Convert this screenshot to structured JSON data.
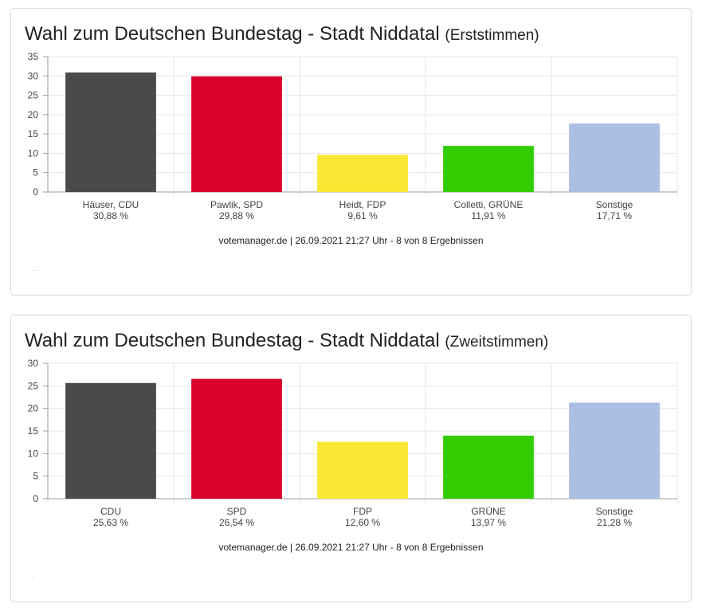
{
  "charts": [
    {
      "title": "Wahl zum Deutschen Bundestag - Stadt Niddatal",
      "subtitle": "(Erststimmen)",
      "footer": "votemanager.de | 26.09.2021 21:27 Uhr - 8 von 8 Ergebnissen",
      "chart_data": {
        "type": "bar",
        "categories": [
          "Häuser, CDU",
          "Pawlik, SPD",
          "Heidt, FDP",
          "Colletti, GRÜNE",
          "Sonstige"
        ],
        "values": [
          30.88,
          29.88,
          9.61,
          11.91,
          17.71
        ],
        "value_labels": [
          "30,88 %",
          "29,88 %",
          "9,61 %",
          "11,91 %",
          "17,71 %"
        ],
        "colors": [
          "#4a4a4a",
          "#d9002b",
          "#f8e833",
          "#33cc00",
          "#aabfe3"
        ],
        "ylim": [
          0,
          35
        ],
        "yticks": [
          0,
          5,
          10,
          15,
          20,
          25,
          30,
          35
        ],
        "grid": true
      }
    },
    {
      "title": "Wahl zum Deutschen Bundestag - Stadt Niddatal",
      "subtitle": "(Zweitstimmen)",
      "footer": "votemanager.de | 26.09.2021 21:27 Uhr - 8 von 8 Ergebnissen",
      "chart_data": {
        "type": "bar",
        "categories": [
          "CDU",
          "SPD",
          "FDP",
          "GRÜNE",
          "Sonstige"
        ],
        "values": [
          25.63,
          26.54,
          12.6,
          13.97,
          21.28
        ],
        "value_labels": [
          "25,63 %",
          "26,54 %",
          "12,60 %",
          "13,97 %",
          "21,28 %"
        ],
        "colors": [
          "#4a4a4a",
          "#d9002b",
          "#f8e833",
          "#33cc00",
          "#aabfe3"
        ],
        "ylim": [
          0,
          30
        ],
        "yticks": [
          0,
          5,
          10,
          15,
          20,
          25,
          30
        ],
        "grid": true
      }
    }
  ]
}
